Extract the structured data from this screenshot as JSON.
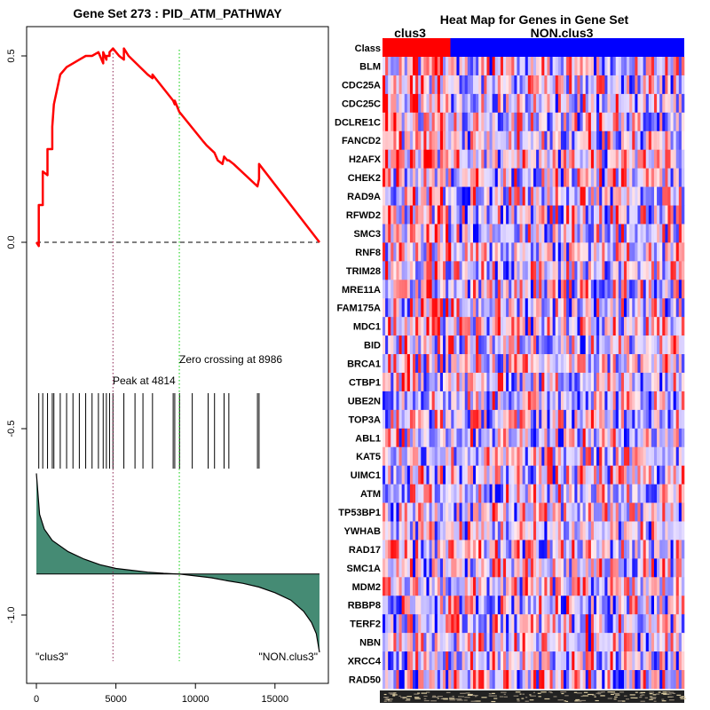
{
  "chart_data": [
    {
      "type": "line",
      "title": "Gene Set  273 : PID_ATM_PATHWAY",
      "xlabel": "",
      "ylabel": "",
      "xlim": [
        -1000,
        18000
      ],
      "ylim": [
        -1.15,
        0.58
      ],
      "x_ticks": [
        0,
        5000,
        10000,
        15000
      ],
      "x_tick_labels": [
        "0",
        "5000",
        "10000",
        "15000"
      ],
      "y_ticks": [
        0.5,
        0.0,
        -0.5,
        -1.0
      ],
      "y_tick_labels": [
        "0.5",
        "0.0",
        "-0.5",
        "-1.0"
      ],
      "series": [
        {
          "name": "running enrichment score",
          "color": "#ff0000",
          "x": [
            0,
            150,
            150,
            400,
            400,
            700,
            700,
            1000,
            1000,
            1100,
            1100,
            1500,
            1500,
            1900,
            1900,
            2300,
            2300,
            2700,
            2700,
            3100,
            3100,
            3500,
            3500,
            3900,
            3900,
            4200,
            4200,
            4400,
            4400,
            4600,
            4600,
            4814,
            5200,
            5500,
            5500,
            5800,
            7000,
            7300,
            7300,
            8600,
            8700,
            8700,
            8986,
            10500,
            10700,
            11200,
            11400,
            11700,
            11800,
            12000,
            12100,
            12400,
            13900,
            14000,
            14000,
            17800
          ],
          "y": [
            0.0,
            -0.01,
            0.1,
            0.1,
            0.19,
            0.18,
            0.25,
            0.25,
            0.31,
            0.37,
            0.37,
            0.45,
            0.45,
            0.47,
            0.47,
            0.48,
            0.48,
            0.49,
            0.49,
            0.5,
            0.5,
            0.5,
            0.5,
            0.51,
            0.51,
            0.48,
            0.51,
            0.49,
            0.5,
            0.5,
            0.51,
            0.52,
            0.5,
            0.49,
            0.52,
            0.5,
            0.45,
            0.44,
            0.45,
            0.38,
            0.37,
            0.38,
            0.35,
            0.27,
            0.26,
            0.24,
            0.22,
            0.21,
            0.23,
            0.22,
            0.22,
            0.21,
            0.15,
            0.17,
            0.21,
            0.0
          ]
        }
      ],
      "reference_lines": [
        {
          "name": "zero line",
          "y": 0.0,
          "style": "dashed",
          "color": "#000000"
        },
        {
          "name": "peak line",
          "x": 4814,
          "style": "dotted",
          "color": "#8b2252"
        },
        {
          "name": "zero crossing line",
          "x": 8986,
          "style": "dotted",
          "color": "#00cc00"
        }
      ],
      "hit_ticks_x": [
        150,
        400,
        700,
        1000,
        1100,
        1500,
        1900,
        2300,
        2700,
        3100,
        3500,
        3900,
        4200,
        4400,
        4600,
        4814,
        5500,
        6200,
        6700,
        7300,
        8600,
        8700,
        9000,
        9800,
        10800,
        11200,
        11800,
        12100,
        13900,
        14000
      ],
      "ranked_metric": {
        "color": "#458b74",
        "baseline": -0.89,
        "x": [
          0,
          200,
          500,
          1000,
          2000,
          3000,
          4000,
          5000,
          6000,
          7000,
          8000,
          8986,
          10000,
          11000,
          12000,
          13000,
          14000,
          15000,
          16000,
          16800,
          17300,
          17600,
          17800
        ],
        "y": [
          -0.62,
          -0.73,
          -0.77,
          -0.8,
          -0.83,
          -0.85,
          -0.865,
          -0.875,
          -0.88,
          -0.885,
          -0.888,
          -0.89,
          -0.895,
          -0.9,
          -0.908,
          -0.915,
          -0.925,
          -0.94,
          -0.96,
          -0.99,
          -1.02,
          -1.05,
          -1.1
        ]
      },
      "annotations": {
        "peak": "Peak at 4814",
        "zero_crossing": "Zero crossing at 8986",
        "left_label": "\"clus3\"",
        "right_label": "\"NON.clus3\""
      }
    },
    {
      "type": "heatmap",
      "title": "Heat Map for Genes in Gene Set",
      "class_row_label": "Class",
      "groups": [
        {
          "name": "clus3",
          "color": "#ff0000",
          "fraction": 0.225
        },
        {
          "name": "NON.clus3",
          "color": "#0000ff",
          "fraction": 0.775
        }
      ],
      "genes": [
        "BLM",
        "CDC25A",
        "CDC25C",
        "DCLRE1C",
        "FANCD2",
        "H2AFX",
        "CHEK2",
        "RAD9A",
        "RFWD2",
        "SMC3",
        "RNF8",
        "TRIM28",
        "MRE11A",
        "FAM175A",
        "MDC1",
        "BID",
        "BRCA1",
        "CTBP1",
        "UBE2N",
        "TOP3A",
        "ABL1",
        "KAT5",
        "UIMC1",
        "ATM",
        "TP53BP1",
        "YWHAB",
        "RAD17",
        "SMC1A",
        "MDM2",
        "RBBP8",
        "TERF2",
        "NBN",
        "XRCC4",
        "RAD50"
      ],
      "color_scale": [
        "#0000ff",
        "#ffffff",
        "#ff0000"
      ]
    }
  ]
}
